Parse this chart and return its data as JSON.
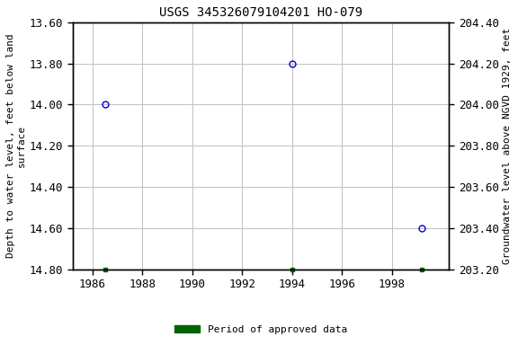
{
  "title": "USGS 345326079104201 HO-079",
  "points_x": [
    1986.5,
    1994.0,
    1999.2
  ],
  "points_y": [
    14.0,
    13.8,
    14.6
  ],
  "green_x": [
    1986.5,
    1994.0,
    1999.2
  ],
  "green_y": [
    14.8,
    14.8,
    14.8
  ],
  "ylim": [
    13.6,
    14.8
  ],
  "xlim": [
    1985.2,
    2000.3
  ],
  "xticks": [
    1986,
    1988,
    1990,
    1992,
    1994,
    1996,
    1998
  ],
  "yticks_left": [
    13.6,
    13.8,
    14.0,
    14.2,
    14.4,
    14.6,
    14.8
  ],
  "yticks_right_labels": [
    "204.40",
    "204.20",
    "204.00",
    "203.80",
    "203.60",
    "203.40",
    "203.20"
  ],
  "ylabel_left": "Depth to water level, feet below land\nsurface",
  "ylabel_right": "Groundwater level above NGVD 1929, feet",
  "point_color": "#0000cc",
  "green_color": "#006400",
  "grid_color": "#c0c0c0",
  "bg_color": "#ffffff",
  "legend_label": "Period of approved data",
  "title_fontsize": 10,
  "label_fontsize": 8,
  "tick_fontsize": 9
}
